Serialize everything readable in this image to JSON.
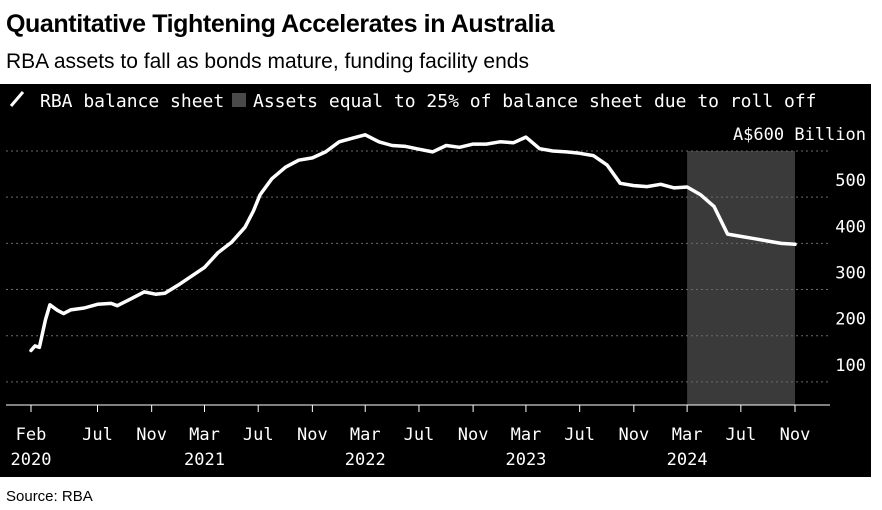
{
  "header": {
    "title": "Quantitative Tightening Accelerates in Australia",
    "subtitle": "RBA assets to fall as bonds mature, funding facility ends"
  },
  "source": "Source: RBA",
  "colors": {
    "background": "#000000",
    "line": "#ffffff",
    "shade": "#3a3a3a",
    "grid": "#6a6a6a"
  },
  "chart_data": {
    "type": "line",
    "title": "Quantitative Tightening Accelerates in Australia",
    "subtitle": "RBA assets to fall as bonds mature, funding facility ends",
    "legend": [
      {
        "label": "RBA balance sheet",
        "type": "line"
      },
      {
        "label": "Assets equal to 25% of balance sheet due to roll off",
        "type": "area"
      }
    ],
    "legend_position": "top-left",
    "y_axis": {
      "side": "right",
      "ylim": [
        50,
        600
      ],
      "ticks": [
        100,
        200,
        300,
        400,
        500,
        600
      ],
      "tick_labels": [
        "100",
        "200",
        "300",
        "400",
        "500",
        "A$600 Billion"
      ]
    },
    "x_axis": {
      "ticks": [
        {
          "date": "2020-02",
          "label": "Feb",
          "year": "2020"
        },
        {
          "date": "2020-07",
          "label": "Jul",
          "year": ""
        },
        {
          "date": "2020-11",
          "label": "Nov",
          "year": ""
        },
        {
          "date": "2021-03",
          "label": "Mar",
          "year": "2021"
        },
        {
          "date": "2021-07",
          "label": "Jul",
          "year": ""
        },
        {
          "date": "2021-11",
          "label": "Nov",
          "year": ""
        },
        {
          "date": "2022-03",
          "label": "Mar",
          "year": "2022"
        },
        {
          "date": "2022-07",
          "label": "Jul",
          "year": ""
        },
        {
          "date": "2022-11",
          "label": "Nov",
          "year": ""
        },
        {
          "date": "2023-03",
          "label": "Mar",
          "year": "2023"
        },
        {
          "date": "2023-07",
          "label": "Jul",
          "year": ""
        },
        {
          "date": "2023-11",
          "label": "Nov",
          "year": ""
        },
        {
          "date": "2024-03",
          "label": "Mar",
          "year": "2024"
        },
        {
          "date": "2024-07",
          "label": "Jul",
          "year": ""
        },
        {
          "date": "2024-11",
          "label": "Nov",
          "year": ""
        }
      ]
    },
    "shaded_region": {
      "start": "2024-03",
      "end": "2024-11"
    },
    "grid": true,
    "series": [
      {
        "name": "RBA balance sheet",
        "points": [
          [
            "2020-02-01",
            168
          ],
          [
            "2020-02-10",
            178
          ],
          [
            "2020-02-20",
            175
          ],
          [
            "2020-03-05",
            235
          ],
          [
            "2020-03-15",
            267
          ],
          [
            "2020-04-01",
            255
          ],
          [
            "2020-04-15",
            248
          ],
          [
            "2020-05-01",
            256
          ],
          [
            "2020-06-01",
            260
          ],
          [
            "2020-07-01",
            268
          ],
          [
            "2020-08-01",
            270
          ],
          [
            "2020-08-15",
            265
          ],
          [
            "2020-09-15",
            280
          ],
          [
            "2020-10-15",
            295
          ],
          [
            "2020-11-10",
            290
          ],
          [
            "2020-12-01",
            292
          ],
          [
            "2021-01-01",
            310
          ],
          [
            "2021-02-01",
            330
          ],
          [
            "2021-03-01",
            348
          ],
          [
            "2021-04-01",
            380
          ],
          [
            "2021-05-01",
            402
          ],
          [
            "2021-06-01",
            435
          ],
          [
            "2021-06-20",
            470
          ],
          [
            "2021-07-05",
            505
          ],
          [
            "2021-08-01",
            540
          ],
          [
            "2021-09-01",
            565
          ],
          [
            "2021-10-01",
            580
          ],
          [
            "2021-11-01",
            585
          ],
          [
            "2021-12-01",
            598
          ],
          [
            "2022-01-01",
            620
          ],
          [
            "2022-02-01",
            628
          ],
          [
            "2022-03-01",
            635
          ],
          [
            "2022-04-01",
            620
          ],
          [
            "2022-05-01",
            612
          ],
          [
            "2022-06-01",
            610
          ],
          [
            "2022-07-01",
            604
          ],
          [
            "2022-08-01",
            598
          ],
          [
            "2022-09-01",
            612
          ],
          [
            "2022-10-01",
            608
          ],
          [
            "2022-11-01",
            615
          ],
          [
            "2022-12-01",
            615
          ],
          [
            "2023-01-01",
            620
          ],
          [
            "2023-02-01",
            618
          ],
          [
            "2023-03-01",
            630
          ],
          [
            "2023-04-01",
            605
          ],
          [
            "2023-05-01",
            600
          ],
          [
            "2023-06-01",
            598
          ],
          [
            "2023-07-01",
            595
          ],
          [
            "2023-08-01",
            590
          ],
          [
            "2023-09-01",
            570
          ],
          [
            "2023-10-01",
            530
          ],
          [
            "2023-11-01",
            525
          ],
          [
            "2023-12-01",
            523
          ],
          [
            "2024-01-01",
            528
          ],
          [
            "2024-02-01",
            520
          ],
          [
            "2024-03-01",
            522
          ],
          [
            "2024-04-01",
            505
          ],
          [
            "2024-05-01",
            480
          ],
          [
            "2024-06-01",
            420
          ],
          [
            "2024-07-01",
            415
          ],
          [
            "2024-08-01",
            410
          ],
          [
            "2024-09-01",
            405
          ],
          [
            "2024-10-01",
            400
          ],
          [
            "2024-11-01",
            398
          ]
        ]
      }
    ]
  }
}
